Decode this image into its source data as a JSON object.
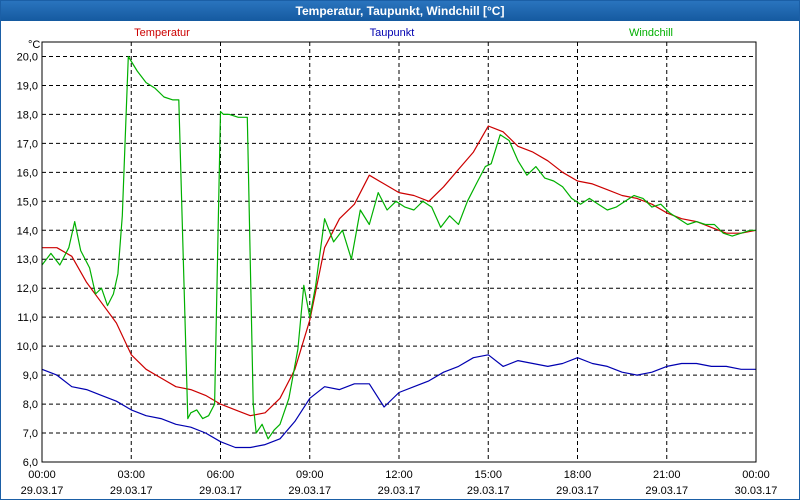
{
  "window": {
    "title": "Temperatur, Taupunkt, Windchill [°C]"
  },
  "chart_data": {
    "type": "line",
    "title": "Temperatur, Taupunkt, Windchill [°C]",
    "ylabel": "°C",
    "xlabel": "",
    "ylim": [
      6.0,
      20.5
    ],
    "xlim": [
      0,
      24
    ],
    "grid": true,
    "legend_position": "top",
    "y_ticks": [
      "6,0",
      "7,0",
      "8,0",
      "9,0",
      "10,0",
      "11,0",
      "12,0",
      "13,0",
      "14,0",
      "15,0",
      "16,0",
      "17,0",
      "18,0",
      "19,0",
      "20,0"
    ],
    "x_ticks": [
      {
        "time": "00:00",
        "date": "29.03.17"
      },
      {
        "time": "03:00",
        "date": "29.03.17"
      },
      {
        "time": "06:00",
        "date": "29.03.17"
      },
      {
        "time": "09:00",
        "date": "29.03.17"
      },
      {
        "time": "12:00",
        "date": "29.03.17"
      },
      {
        "time": "15:00",
        "date": "29.03.17"
      },
      {
        "time": "18:00",
        "date": "29.03.17"
      },
      {
        "time": "21:00",
        "date": "29.03.17"
      },
      {
        "time": "00:00",
        "date": "30.03.17"
      }
    ],
    "series": [
      {
        "name": "Temperatur",
        "color": "#cc0000",
        "x": [
          0,
          0.5,
          1,
          1.5,
          2,
          2.5,
          3,
          3.5,
          4,
          4.5,
          5,
          5.5,
          6,
          6.5,
          7,
          7.5,
          8,
          8.5,
          9,
          9.5,
          10,
          10.5,
          11,
          11.5,
          12,
          12.5,
          13,
          13.5,
          14,
          14.5,
          15,
          15.5,
          16,
          16.5,
          17,
          17.5,
          18,
          18.5,
          19,
          19.5,
          20,
          20.5,
          21,
          21.5,
          22,
          22.5,
          23,
          23.5,
          24
        ],
        "values": [
          13.4,
          13.4,
          13.1,
          12.2,
          11.5,
          10.8,
          9.7,
          9.2,
          8.9,
          8.6,
          8.5,
          8.3,
          8.0,
          7.8,
          7.6,
          7.7,
          8.2,
          9.2,
          10.9,
          13.4,
          14.4,
          14.9,
          15.9,
          15.6,
          15.3,
          15.2,
          15.0,
          15.5,
          16.1,
          16.7,
          17.6,
          17.4,
          16.9,
          16.7,
          16.4,
          16.0,
          15.7,
          15.6,
          15.4,
          15.2,
          15.1,
          14.9,
          14.6,
          14.4,
          14.3,
          14.1,
          13.9,
          13.9,
          14.0
        ]
      },
      {
        "name": "Taupunkt",
        "color": "#0000b0",
        "x": [
          0,
          0.5,
          1,
          1.5,
          2,
          2.5,
          3,
          3.5,
          4,
          4.5,
          5,
          5.5,
          6,
          6.5,
          7,
          7.5,
          8,
          8.5,
          9,
          9.5,
          10,
          10.5,
          11,
          11.5,
          12,
          12.5,
          13,
          13.5,
          14,
          14.5,
          15,
          15.5,
          16,
          16.5,
          17,
          17.5,
          18,
          18.5,
          19,
          19.5,
          20,
          20.5,
          21,
          21.5,
          22,
          22.5,
          23,
          23.5,
          24
        ],
        "values": [
          9.2,
          9.0,
          8.6,
          8.5,
          8.3,
          8.1,
          7.8,
          7.6,
          7.5,
          7.3,
          7.2,
          7.0,
          6.7,
          6.5,
          6.5,
          6.6,
          6.8,
          7.4,
          8.2,
          8.6,
          8.5,
          8.7,
          8.7,
          7.9,
          8.4,
          8.6,
          8.8,
          9.1,
          9.3,
          9.6,
          9.7,
          9.3,
          9.5,
          9.4,
          9.3,
          9.4,
          9.6,
          9.4,
          9.3,
          9.1,
          9.0,
          9.1,
          9.3,
          9.4,
          9.4,
          9.3,
          9.3,
          9.2,
          9.2
        ]
      },
      {
        "name": "Windchill",
        "color": "#00b000",
        "x": [
          0,
          0.3,
          0.6,
          0.9,
          1.1,
          1.3,
          1.6,
          1.8,
          2.0,
          2.2,
          2.4,
          2.55,
          2.7,
          2.9,
          3.2,
          3.5,
          3.8,
          4.1,
          4.4,
          4.6,
          4.9,
          5.0,
          5.2,
          5.4,
          5.6,
          5.8,
          6.0,
          6.1,
          6.3,
          6.6,
          6.9,
          7.1,
          7.2,
          7.4,
          7.6,
          7.8,
          8.0,
          8.3,
          8.6,
          8.8,
          9.0,
          9.2,
          9.5,
          9.8,
          10.1,
          10.4,
          10.7,
          11.0,
          11.3,
          11.6,
          11.9,
          12.2,
          12.5,
          12.8,
          13.1,
          13.4,
          13.7,
          14.0,
          14.3,
          14.6,
          14.9,
          15.1,
          15.4,
          15.7,
          16.0,
          16.3,
          16.6,
          16.9,
          17.2,
          17.5,
          17.8,
          18.1,
          18.4,
          18.7,
          19.0,
          19.3,
          19.6,
          19.9,
          20.2,
          20.5,
          20.8,
          21.1,
          21.4,
          21.7,
          22.0,
          22.3,
          22.6,
          22.9,
          23.2,
          23.5,
          23.8,
          24.0
        ],
        "values": [
          12.8,
          13.2,
          12.8,
          13.4,
          14.3,
          13.3,
          12.7,
          11.8,
          12.0,
          11.4,
          11.8,
          12.5,
          14.5,
          20.0,
          19.5,
          19.1,
          18.9,
          18.6,
          18.5,
          18.5,
          7.5,
          7.7,
          7.8,
          7.5,
          7.6,
          8.0,
          18.1,
          18.0,
          18.0,
          17.9,
          17.9,
          8.0,
          7.0,
          7.3,
          6.8,
          7.1,
          7.3,
          8.2,
          9.9,
          12.1,
          11.0,
          12.1,
          14.4,
          13.6,
          14.0,
          13.0,
          14.7,
          14.2,
          15.3,
          14.7,
          15.0,
          14.8,
          14.7,
          15.0,
          14.8,
          14.1,
          14.5,
          14.2,
          15.0,
          15.6,
          16.2,
          16.3,
          17.3,
          17.1,
          16.4,
          15.9,
          16.2,
          15.8,
          15.7,
          15.5,
          15.1,
          14.9,
          15.1,
          14.9,
          14.7,
          14.8,
          15.0,
          15.2,
          15.1,
          14.8,
          14.9,
          14.6,
          14.4,
          14.2,
          14.3,
          14.2,
          14.2,
          13.9,
          13.8,
          13.9,
          14.0,
          14.0
        ]
      }
    ]
  }
}
